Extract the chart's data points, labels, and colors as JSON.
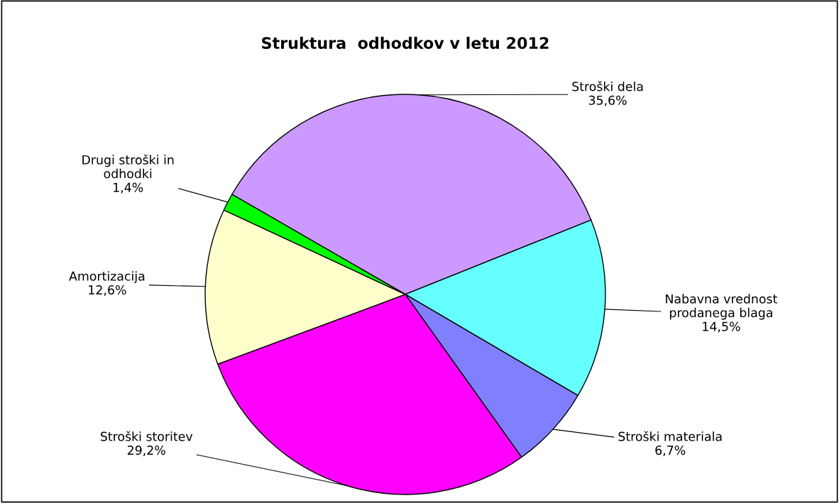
{
  "chart_data": {
    "type": "pie",
    "title": "Struktura  odhodkov v letu 2012",
    "categories": [
      "Stroški dela",
      "Nabavna vrednost prodanega blaga",
      "Stroški materiala",
      "Stroški storitev",
      "Amortizacija",
      "Drugi stroški in odhodki"
    ],
    "values": [
      35.6,
      14.5,
      6.7,
      29.2,
      12.6,
      1.4
    ],
    "value_labels": [
      "35,6%",
      "14,5%",
      "6,7%",
      "29,2%",
      "12,6%",
      "1,4%"
    ],
    "colors": [
      "#cc99ff",
      "#66ffff",
      "#8080ff",
      "#ff00ff",
      "#ffffcc",
      "#00ff00"
    ]
  }
}
